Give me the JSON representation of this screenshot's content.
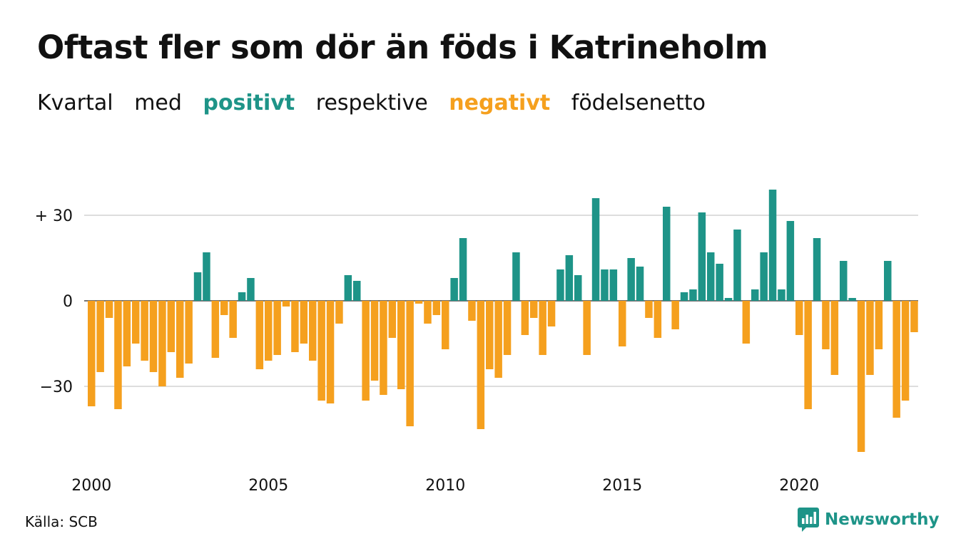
{
  "header": {
    "title": "Oftast fler som dör än föds i Katrineholm",
    "subtitle": {
      "w1": "Kvartal",
      "w2": "med",
      "positive": "positivt",
      "w3": "respektive",
      "negative": "negativt",
      "w4": "födelsenetto"
    }
  },
  "footer": {
    "source": "Källa: SCB",
    "logo_text": "Newsworthy"
  },
  "colors": {
    "positive": "#1e9488",
    "negative": "#f5a01e",
    "grid": "#dddddd",
    "text": "#111111"
  },
  "chart_data": {
    "type": "bar",
    "title": "Oftast fler som dör än föds i Katrineholm",
    "xlabel": "",
    "ylabel": "",
    "ylim": [
      -55,
      42
    ],
    "yticks": [
      {
        "value": 30,
        "label": "+ 30"
      },
      {
        "value": 0,
        "label": "0"
      },
      {
        "value": -30,
        "label": "−30"
      }
    ],
    "xticks": [
      "2000",
      "2005",
      "2010",
      "2015",
      "2020"
    ],
    "start_year": 2000,
    "grid": true,
    "period": "quarter",
    "values": [
      -37,
      -25,
      -6,
      -38,
      -23,
      -15,
      -21,
      -25,
      -30,
      -18,
      -27,
      -22,
      10,
      17,
      -20,
      -5,
      -13,
      3,
      8,
      -24,
      -21,
      -19,
      -2,
      -18,
      -15,
      -21,
      -35,
      -36,
      -8,
      9,
      7,
      -35,
      -28,
      -33,
      -13,
      -31,
      -44,
      -1,
      -8,
      -5,
      -17,
      8,
      22,
      -7,
      -45,
      -24,
      -27,
      -19,
      17,
      -12,
      -6,
      -19,
      -9,
      11,
      16,
      9,
      -19,
      36,
      11,
      11,
      -16,
      15,
      12,
      -6,
      -13,
      33,
      -10,
      3,
      4,
      31,
      17,
      13,
      1,
      25,
      -15,
      4,
      17,
      39,
      4,
      28,
      -12,
      -38,
      22,
      -17,
      -26,
      14,
      1,
      -53,
      -26,
      -17,
      14,
      -41,
      -35,
      -11
    ]
  }
}
